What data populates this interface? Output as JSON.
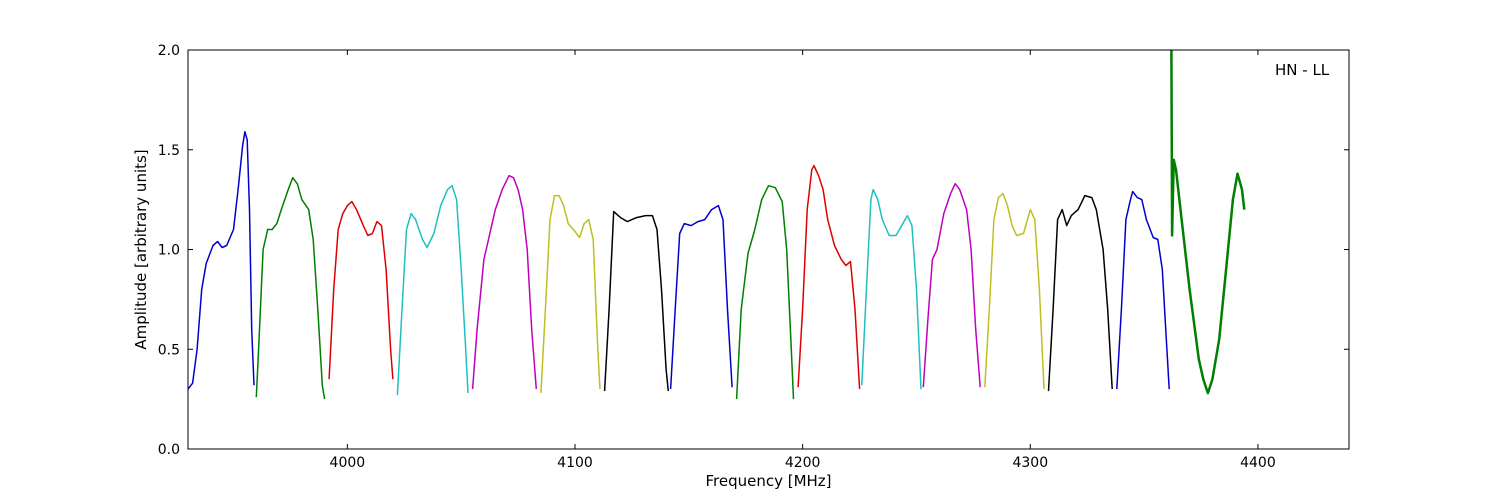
{
  "chart_data": {
    "type": "line",
    "xlabel": "Frequency [MHz]",
    "ylabel": "Amplitude [arbitrary units]",
    "annotation": "HN - LL",
    "xlim": [
      3930,
      4440
    ],
    "ylim": [
      0.0,
      2.0
    ],
    "x_ticks": [
      4000,
      4100,
      4200,
      4300,
      4400
    ],
    "y_ticks": [
      0.0,
      0.5,
      1.0,
      1.5,
      2.0
    ],
    "y_tick_labels": [
      "0.0",
      "0.5",
      "1.0",
      "1.5",
      "2.0"
    ],
    "grid": false,
    "series": [
      {
        "color": "#0000cc",
        "points": [
          [
            3930,
            0.3
          ],
          [
            3932,
            0.33
          ],
          [
            3934,
            0.5
          ],
          [
            3936,
            0.8
          ],
          [
            3938,
            0.93
          ],
          [
            3941,
            1.02
          ],
          [
            3943,
            1.04
          ],
          [
            3945,
            1.01
          ],
          [
            3947,
            1.02
          ],
          [
            3950,
            1.1
          ],
          [
            3952,
            1.3
          ],
          [
            3954,
            1.52
          ],
          [
            3955,
            1.59
          ],
          [
            3956,
            1.55
          ],
          [
            3957,
            1.2
          ],
          [
            3958,
            0.6
          ],
          [
            3959,
            0.32
          ]
        ]
      },
      {
        "color": "#007f00",
        "points": [
          [
            3960,
            0.26
          ],
          [
            3961,
            0.5
          ],
          [
            3963,
            1.0
          ],
          [
            3965,
            1.1
          ],
          [
            3967,
            1.1
          ],
          [
            3969,
            1.13
          ],
          [
            3971,
            1.2
          ],
          [
            3974,
            1.3
          ],
          [
            3976,
            1.36
          ],
          [
            3978,
            1.33
          ],
          [
            3980,
            1.25
          ],
          [
            3983,
            1.2
          ],
          [
            3985,
            1.05
          ],
          [
            3987,
            0.7
          ],
          [
            3989,
            0.32
          ],
          [
            3990,
            0.25
          ]
        ]
      },
      {
        "color": "#dd0000",
        "points": [
          [
            3992,
            0.35
          ],
          [
            3994,
            0.8
          ],
          [
            3996,
            1.1
          ],
          [
            3998,
            1.18
          ],
          [
            4000,
            1.22
          ],
          [
            4002,
            1.24
          ],
          [
            4004,
            1.2
          ],
          [
            4007,
            1.12
          ],
          [
            4009,
            1.07
          ],
          [
            4011,
            1.08
          ],
          [
            4013,
            1.14
          ],
          [
            4015,
            1.12
          ],
          [
            4017,
            0.9
          ],
          [
            4019,
            0.5
          ],
          [
            4020,
            0.35
          ]
        ]
      },
      {
        "color": "#1fbfbf",
        "points": [
          [
            4022,
            0.27
          ],
          [
            4024,
            0.7
          ],
          [
            4026,
            1.1
          ],
          [
            4028,
            1.18
          ],
          [
            4030,
            1.15
          ],
          [
            4033,
            1.05
          ],
          [
            4035,
            1.01
          ],
          [
            4038,
            1.08
          ],
          [
            4041,
            1.22
          ],
          [
            4044,
            1.3
          ],
          [
            4046,
            1.32
          ],
          [
            4048,
            1.25
          ],
          [
            4050,
            0.9
          ],
          [
            4052,
            0.5
          ],
          [
            4053,
            0.28
          ]
        ]
      },
      {
        "color": "#bf00bf",
        "points": [
          [
            4055,
            0.3
          ],
          [
            4057,
            0.6
          ],
          [
            4060,
            0.95
          ],
          [
            4062,
            1.05
          ],
          [
            4065,
            1.2
          ],
          [
            4068,
            1.3
          ],
          [
            4071,
            1.37
          ],
          [
            4073,
            1.36
          ],
          [
            4075,
            1.3
          ],
          [
            4077,
            1.2
          ],
          [
            4079,
            1.0
          ],
          [
            4081,
            0.6
          ],
          [
            4083,
            0.3
          ]
        ]
      },
      {
        "color": "#bfbf1f",
        "points": [
          [
            4085,
            0.28
          ],
          [
            4087,
            0.7
          ],
          [
            4089,
            1.15
          ],
          [
            4091,
            1.27
          ],
          [
            4093,
            1.27
          ],
          [
            4095,
            1.22
          ],
          [
            4097,
            1.13
          ],
          [
            4100,
            1.09
          ],
          [
            4102,
            1.06
          ],
          [
            4104,
            1.13
          ],
          [
            4106,
            1.15
          ],
          [
            4108,
            1.05
          ],
          [
            4110,
            0.5
          ],
          [
            4111,
            0.3
          ]
        ]
      },
      {
        "color": "#000000",
        "points": [
          [
            4113,
            0.29
          ],
          [
            4115,
            0.7
          ],
          [
            4117,
            1.19
          ],
          [
            4120,
            1.16
          ],
          [
            4123,
            1.14
          ],
          [
            4127,
            1.16
          ],
          [
            4131,
            1.17
          ],
          [
            4134,
            1.17
          ],
          [
            4136,
            1.1
          ],
          [
            4138,
            0.8
          ],
          [
            4140,
            0.4
          ],
          [
            4141,
            0.29
          ]
        ]
      },
      {
        "color": "#0000cc",
        "points": [
          [
            4142,
            0.3
          ],
          [
            4144,
            0.7
          ],
          [
            4146,
            1.08
          ],
          [
            4148,
            1.13
          ],
          [
            4151,
            1.12
          ],
          [
            4154,
            1.14
          ],
          [
            4157,
            1.15
          ],
          [
            4160,
            1.2
          ],
          [
            4163,
            1.22
          ],
          [
            4165,
            1.15
          ],
          [
            4167,
            0.7
          ],
          [
            4169,
            0.31
          ]
        ]
      },
      {
        "color": "#007f00",
        "points": [
          [
            4171,
            0.25
          ],
          [
            4173,
            0.7
          ],
          [
            4176,
            0.98
          ],
          [
            4179,
            1.1
          ],
          [
            4182,
            1.25
          ],
          [
            4185,
            1.32
          ],
          [
            4188,
            1.31
          ],
          [
            4191,
            1.24
          ],
          [
            4193,
            1.0
          ],
          [
            4195,
            0.5
          ],
          [
            4196,
            0.25
          ]
        ]
      },
      {
        "color": "#dd0000",
        "points": [
          [
            4198,
            0.31
          ],
          [
            4200,
            0.7
          ],
          [
            4202,
            1.2
          ],
          [
            4204,
            1.4
          ],
          [
            4205,
            1.42
          ],
          [
            4207,
            1.37
          ],
          [
            4209,
            1.3
          ],
          [
            4211,
            1.15
          ],
          [
            4214,
            1.02
          ],
          [
            4217,
            0.95
          ],
          [
            4219,
            0.92
          ],
          [
            4221,
            0.94
          ],
          [
            4223,
            0.7
          ],
          [
            4225,
            0.3
          ]
        ]
      },
      {
        "color": "#1fbfbf",
        "points": [
          [
            4226,
            0.32
          ],
          [
            4228,
            0.8
          ],
          [
            4230,
            1.25
          ],
          [
            4231,
            1.3
          ],
          [
            4233,
            1.25
          ],
          [
            4235,
            1.15
          ],
          [
            4238,
            1.07
          ],
          [
            4241,
            1.07
          ],
          [
            4244,
            1.13
          ],
          [
            4246,
            1.17
          ],
          [
            4248,
            1.12
          ],
          [
            4250,
            0.8
          ],
          [
            4252,
            0.3
          ]
        ]
      },
      {
        "color": "#bf00bf",
        "points": [
          [
            4253,
            0.31
          ],
          [
            4255,
            0.65
          ],
          [
            4257,
            0.95
          ],
          [
            4259,
            1.0
          ],
          [
            4262,
            1.18
          ],
          [
            4265,
            1.28
          ],
          [
            4267,
            1.33
          ],
          [
            4269,
            1.3
          ],
          [
            4272,
            1.2
          ],
          [
            4274,
            1.0
          ],
          [
            4276,
            0.6
          ],
          [
            4278,
            0.31
          ]
        ]
      },
      {
        "color": "#bfbf1f",
        "points": [
          [
            4280,
            0.31
          ],
          [
            4282,
            0.7
          ],
          [
            4284,
            1.15
          ],
          [
            4286,
            1.26
          ],
          [
            4288,
            1.28
          ],
          [
            4290,
            1.22
          ],
          [
            4292,
            1.12
          ],
          [
            4294,
            1.07
          ],
          [
            4297,
            1.08
          ],
          [
            4300,
            1.2
          ],
          [
            4302,
            1.15
          ],
          [
            4304,
            0.8
          ],
          [
            4306,
            0.3
          ]
        ]
      },
      {
        "color": "#000000",
        "points": [
          [
            4308,
            0.29
          ],
          [
            4310,
            0.7
          ],
          [
            4312,
            1.15
          ],
          [
            4314,
            1.2
          ],
          [
            4316,
            1.12
          ],
          [
            4318,
            1.17
          ],
          [
            4321,
            1.2
          ],
          [
            4324,
            1.27
          ],
          [
            4327,
            1.26
          ],
          [
            4329,
            1.2
          ],
          [
            4332,
            1.0
          ],
          [
            4334,
            0.7
          ],
          [
            4336,
            0.3
          ]
        ]
      },
      {
        "color": "#0000cc",
        "points": [
          [
            4338,
            0.3
          ],
          [
            4340,
            0.7
          ],
          [
            4342,
            1.15
          ],
          [
            4344,
            1.25
          ],
          [
            4345,
            1.29
          ],
          [
            4347,
            1.26
          ],
          [
            4349,
            1.25
          ],
          [
            4351,
            1.15
          ],
          [
            4354,
            1.06
          ],
          [
            4356,
            1.05
          ],
          [
            4358,
            0.9
          ],
          [
            4360,
            0.5
          ],
          [
            4361,
            0.3
          ]
        ]
      },
      {
        "color": "#007f00",
        "points": [
          [
            4362,
            2.0
          ],
          [
            4362.3,
            1.07
          ],
          [
            4363,
            1.45
          ],
          [
            4364,
            1.4
          ],
          [
            4366,
            1.2
          ],
          [
            4370,
            0.8
          ],
          [
            4374,
            0.45
          ],
          [
            4376,
            0.35
          ],
          [
            4378,
            0.28
          ],
          [
            4380,
            0.35
          ],
          [
            4383,
            0.55
          ],
          [
            4386,
            0.9
          ],
          [
            4389,
            1.25
          ],
          [
            4391,
            1.38
          ],
          [
            4393,
            1.3
          ],
          [
            4394,
            1.2
          ]
        ]
      }
    ]
  }
}
